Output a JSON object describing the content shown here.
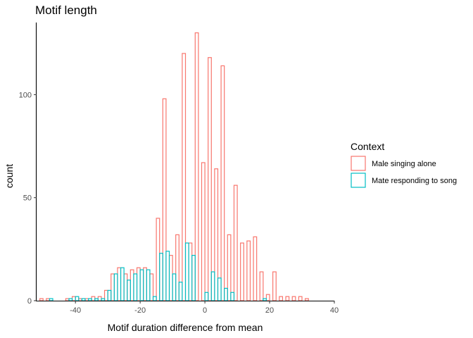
{
  "chart_data": {
    "type": "histogram",
    "title": "Motif length",
    "xlabel": "Motif duration difference from mean",
    "ylabel": "count",
    "xlim": [
      -52,
      40
    ],
    "ylim": [
      0,
      135
    ],
    "xticks": [
      -40,
      -20,
      0,
      20,
      40
    ],
    "yticks": [
      0,
      50,
      100
    ],
    "grid": false,
    "legend": {
      "title": "Context",
      "position": "right"
    },
    "bin_width": 2,
    "series": [
      {
        "name": "Male singing alone",
        "color": "#F8766D",
        "bins": [
          {
            "x": -50,
            "count": 1
          },
          {
            "x": -48,
            "count": 1
          },
          {
            "x": -46,
            "count": 0
          },
          {
            "x": -44,
            "count": 0
          },
          {
            "x": -42,
            "count": 1
          },
          {
            "x": -40,
            "count": 2
          },
          {
            "x": -38,
            "count": 1
          },
          {
            "x": -36,
            "count": 1
          },
          {
            "x": -34,
            "count": 2
          },
          {
            "x": -32,
            "count": 2
          },
          {
            "x": -30,
            "count": 5
          },
          {
            "x": -28,
            "count": 13
          },
          {
            "x": -26,
            "count": 16
          },
          {
            "x": -24,
            "count": 13
          },
          {
            "x": -22,
            "count": 15
          },
          {
            "x": -20,
            "count": 16
          },
          {
            "x": -18,
            "count": 16
          },
          {
            "x": -16,
            "count": 13
          },
          {
            "x": -14,
            "count": 40
          },
          {
            "x": -12,
            "count": 98
          },
          {
            "x": -10,
            "count": 22
          },
          {
            "x": -8,
            "count": 32
          },
          {
            "x": -6,
            "count": 120
          },
          {
            "x": -4,
            "count": 28
          },
          {
            "x": -2,
            "count": 130
          },
          {
            "x": 0,
            "count": 67
          },
          {
            "x": 2,
            "count": 118
          },
          {
            "x": 4,
            "count": 64
          },
          {
            "x": 6,
            "count": 114
          },
          {
            "x": 8,
            "count": 32
          },
          {
            "x": 10,
            "count": 56
          },
          {
            "x": 12,
            "count": 28
          },
          {
            "x": 14,
            "count": 29
          },
          {
            "x": 16,
            "count": 31
          },
          {
            "x": 18,
            "count": 14
          },
          {
            "x": 20,
            "count": 3
          },
          {
            "x": 22,
            "count": 14
          },
          {
            "x": 24,
            "count": 2
          },
          {
            "x": 26,
            "count": 2
          },
          {
            "x": 28,
            "count": 2
          },
          {
            "x": 30,
            "count": 2
          },
          {
            "x": 32,
            "count": 1
          },
          {
            "x": 34,
            "count": 0
          }
        ]
      },
      {
        "name": "Mate responding to song",
        "color": "#00BFC4",
        "bins": [
          {
            "x": -48,
            "count": 1
          },
          {
            "x": -46,
            "count": 0
          },
          {
            "x": -44,
            "count": 0
          },
          {
            "x": -42,
            "count": 1
          },
          {
            "x": -40,
            "count": 2
          },
          {
            "x": -38,
            "count": 1
          },
          {
            "x": -36,
            "count": 1
          },
          {
            "x": -34,
            "count": 1
          },
          {
            "x": -32,
            "count": 1
          },
          {
            "x": -30,
            "count": 5
          },
          {
            "x": -28,
            "count": 13
          },
          {
            "x": -26,
            "count": 16
          },
          {
            "x": -24,
            "count": 10
          },
          {
            "x": -22,
            "count": 13
          },
          {
            "x": -20,
            "count": 15
          },
          {
            "x": -18,
            "count": 15
          },
          {
            "x": -16,
            "count": 2
          },
          {
            "x": -14,
            "count": 23
          },
          {
            "x": -12,
            "count": 24
          },
          {
            "x": -10,
            "count": 13
          },
          {
            "x": -8,
            "count": 9
          },
          {
            "x": -6,
            "count": 28
          },
          {
            "x": -4,
            "count": 22
          },
          {
            "x": -2,
            "count": 0
          },
          {
            "x": 0,
            "count": 4
          },
          {
            "x": 2,
            "count": 14
          },
          {
            "x": 4,
            "count": 11
          },
          {
            "x": 6,
            "count": 6
          },
          {
            "x": 8,
            "count": 4
          },
          {
            "x": 10,
            "count": 0
          },
          {
            "x": 12,
            "count": 0
          },
          {
            "x": 14,
            "count": 0
          },
          {
            "x": 16,
            "count": 0
          },
          {
            "x": 18,
            "count": 1
          },
          {
            "x": 20,
            "count": 0
          },
          {
            "x": 22,
            "count": 0
          },
          {
            "x": 24,
            "count": 0
          },
          {
            "x": 26,
            "count": 0
          },
          {
            "x": 28,
            "count": 0
          },
          {
            "x": 30,
            "count": 0
          },
          {
            "x": 32,
            "count": 0
          },
          {
            "x": 34,
            "count": 0
          }
        ]
      }
    ]
  }
}
